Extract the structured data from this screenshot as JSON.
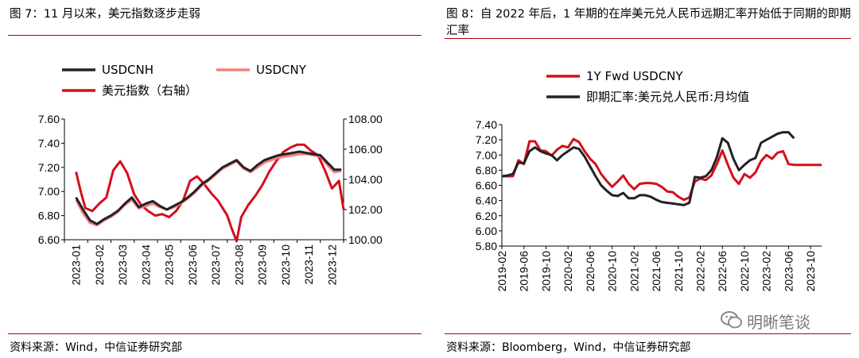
{
  "left": {
    "title": "图 7：11 月以来，美元指数逐步走弱",
    "source": "资料来源：Wind，中信证券研究部",
    "chart_data": {
      "type": "line",
      "x_tick_labels": [
        "2023-01",
        "2023-02",
        "2023-03",
        "2023-04",
        "2023-05",
        "2023-06",
        "2023-07",
        "2023-08",
        "2023-09",
        "2023-10",
        "2023-11",
        "2023-12"
      ],
      "left_axis": {
        "ylim": [
          6.6,
          7.6
        ],
        "tick_labels": [
          "7.60",
          "7.40",
          "7.20",
          "7.00",
          "6.80",
          "6.60"
        ]
      },
      "right_axis": {
        "ylim": [
          100.0,
          108.0
        ],
        "tick_labels": [
          "108.00",
          "106.00",
          "104.00",
          "102.00",
          "100.00"
        ]
      },
      "series": [
        {
          "name": "USDCNH",
          "color": "#222222",
          "axis": "left",
          "x": [
            0,
            0.3,
            0.6,
            0.9,
            1.2,
            1.5,
            1.8,
            2.1,
            2.4,
            2.7,
            3.0,
            3.3,
            3.6,
            3.9,
            4.2,
            4.5,
            4.8,
            5.1,
            5.4,
            5.7,
            6.0,
            6.3,
            6.6,
            6.9,
            7.2,
            7.5,
            7.8,
            8.1,
            8.4,
            8.7,
            9.0,
            9.3,
            9.6,
            9.9,
            10.2,
            10.5,
            10.8,
            11.1,
            11.4
          ],
          "values": [
            6.95,
            6.85,
            6.76,
            6.73,
            6.77,
            6.8,
            6.84,
            6.9,
            6.95,
            6.87,
            6.9,
            6.92,
            6.88,
            6.85,
            6.88,
            6.91,
            6.95,
            7.0,
            7.06,
            7.1,
            7.15,
            7.2,
            7.23,
            7.26,
            7.2,
            7.17,
            7.22,
            7.26,
            7.28,
            7.3,
            7.31,
            7.32,
            7.33,
            7.32,
            7.31,
            7.3,
            7.24,
            7.18,
            7.18
          ]
        },
        {
          "name": "USDCNY",
          "color": "#f08080",
          "axis": "left",
          "x": [
            0,
            0.3,
            0.6,
            0.9,
            1.2,
            1.5,
            1.8,
            2.1,
            2.4,
            2.7,
            3.0,
            3.3,
            3.6,
            3.9,
            4.2,
            4.5,
            4.8,
            5.1,
            5.4,
            5.7,
            6.0,
            6.3,
            6.6,
            6.9,
            7.2,
            7.5,
            7.8,
            8.1,
            8.4,
            8.7,
            9.0,
            9.3,
            9.6,
            9.9,
            10.2,
            10.5,
            10.8,
            11.1,
            11.4
          ],
          "values": [
            6.93,
            6.82,
            6.74,
            6.72,
            6.76,
            6.79,
            6.83,
            6.89,
            6.93,
            6.86,
            6.88,
            6.9,
            6.87,
            6.85,
            6.87,
            6.9,
            6.94,
            6.99,
            7.05,
            7.09,
            7.14,
            7.19,
            7.22,
            7.25,
            7.19,
            7.16,
            7.2,
            7.24,
            7.26,
            7.28,
            7.29,
            7.3,
            7.31,
            7.31,
            7.3,
            7.29,
            7.22,
            7.16,
            7.17
          ]
        },
        {
          "name": "美元指数（右轴）",
          "color": "#d40f1a",
          "axis": "right",
          "x": [
            0,
            0.2,
            0.4,
            0.7,
            1.0,
            1.3,
            1.6,
            1.9,
            2.2,
            2.5,
            2.8,
            3.1,
            3.4,
            3.7,
            4.0,
            4.3,
            4.6,
            4.9,
            5.2,
            5.5,
            5.8,
            6.1,
            6.3,
            6.5,
            6.7,
            6.9,
            7.1,
            7.4,
            7.7,
            8.0,
            8.3,
            8.6,
            8.9,
            9.2,
            9.5,
            9.8,
            10.1,
            10.4,
            10.7,
            11.0,
            11.3,
            11.5
          ],
          "values": [
            104.5,
            103.2,
            102.1,
            101.9,
            102.4,
            102.8,
            104.6,
            105.2,
            104.4,
            103.0,
            102.3,
            101.9,
            101.6,
            101.7,
            101.5,
            101.9,
            102.6,
            103.9,
            104.2,
            103.7,
            103.1,
            102.6,
            102.1,
            101.6,
            100.7,
            99.9,
            101.5,
            102.3,
            102.9,
            103.6,
            104.5,
            105.2,
            105.8,
            106.1,
            106.3,
            106.3,
            105.9,
            105.6,
            104.6,
            103.4,
            103.9,
            102.0
          ]
        }
      ]
    }
  },
  "right": {
    "title": "图 8：自 2022 年后，1 年期的在岸美元兑人民币远期汇率开始低于同期的即期汇率",
    "source": "资料来源：Bloomberg，Wind，中信证券研究部",
    "watermark": "明晰笔谈",
    "chart_data": {
      "type": "line",
      "x_tick_labels": [
        "2019-02",
        "2019-06",
        "2019-10",
        "2020-02",
        "2020-06",
        "2020-10",
        "2021-02",
        "2021-06",
        "2021-10",
        "2022-02",
        "2022-06",
        "2022-10",
        "2023-02",
        "2023-06",
        "2023-10"
      ],
      "ylim": [
        5.8,
        7.4
      ],
      "y_tick_labels": [
        "7.40",
        "7.20",
        "7.00",
        "6.80",
        "6.60",
        "6.40",
        "6.20",
        "6.00",
        "5.80"
      ],
      "series": [
        {
          "name": "1Y Fwd USDCNY",
          "color": "#d40f1a",
          "x": [
            0,
            1,
            2,
            3,
            4,
            5,
            6,
            7,
            8,
            9,
            10,
            11,
            12,
            13,
            14,
            15,
            16,
            17,
            18,
            19,
            20,
            21,
            22,
            23,
            24,
            25,
            26,
            27,
            28,
            29,
            30,
            31,
            32,
            33,
            34,
            35,
            36,
            37,
            38,
            39,
            40,
            41,
            42,
            43,
            44,
            45,
            46,
            47,
            48,
            49,
            50,
            51,
            52,
            53,
            54,
            55,
            56,
            57,
            58
          ],
          "values": [
            6.72,
            6.72,
            6.72,
            6.93,
            6.88,
            7.18,
            7.18,
            7.06,
            7.05,
            6.99,
            7.07,
            7.12,
            7.1,
            7.21,
            7.17,
            7.05,
            6.95,
            6.88,
            6.75,
            6.66,
            6.58,
            6.65,
            6.73,
            6.62,
            6.55,
            6.62,
            6.63,
            6.63,
            6.62,
            6.58,
            6.52,
            6.51,
            6.45,
            6.41,
            6.44,
            6.65,
            6.69,
            6.67,
            6.73,
            6.88,
            7.06,
            6.87,
            6.7,
            6.62,
            6.75,
            6.7,
            6.77,
            6.92,
            7.0,
            6.95,
            7.03,
            7.05,
            6.88,
            6.87,
            6.87,
            6.87,
            6.87,
            6.87,
            6.87
          ]
        },
        {
          "name": "即期汇率:美元兑人民币:月均值",
          "color": "#222222",
          "x": [
            0,
            1,
            2,
            3,
            4,
            5,
            6,
            7,
            8,
            9,
            10,
            11,
            12,
            13,
            14,
            15,
            16,
            17,
            18,
            19,
            20,
            21,
            22,
            23,
            24,
            25,
            26,
            27,
            28,
            29,
            30,
            31,
            32,
            33,
            34,
            35,
            36,
            37,
            38,
            39,
            40,
            41,
            42,
            43,
            44,
            45,
            46,
            47,
            48,
            49,
            50,
            51,
            52,
            53
          ],
          "values": [
            6.72,
            6.73,
            6.75,
            6.9,
            6.89,
            7.05,
            7.1,
            7.05,
            7.02,
            7.0,
            6.93,
            7.0,
            7.05,
            7.1,
            7.08,
            6.98,
            6.85,
            6.72,
            6.6,
            6.53,
            6.47,
            6.46,
            6.5,
            6.43,
            6.43,
            6.47,
            6.47,
            6.45,
            6.41,
            6.38,
            6.37,
            6.36,
            6.35,
            6.34,
            6.37,
            6.71,
            6.7,
            6.72,
            6.8,
            6.97,
            7.22,
            7.16,
            6.95,
            6.8,
            6.87,
            6.93,
            6.96,
            7.16,
            7.2,
            7.24,
            7.28,
            7.3,
            7.3,
            7.22
          ]
        }
      ]
    }
  }
}
